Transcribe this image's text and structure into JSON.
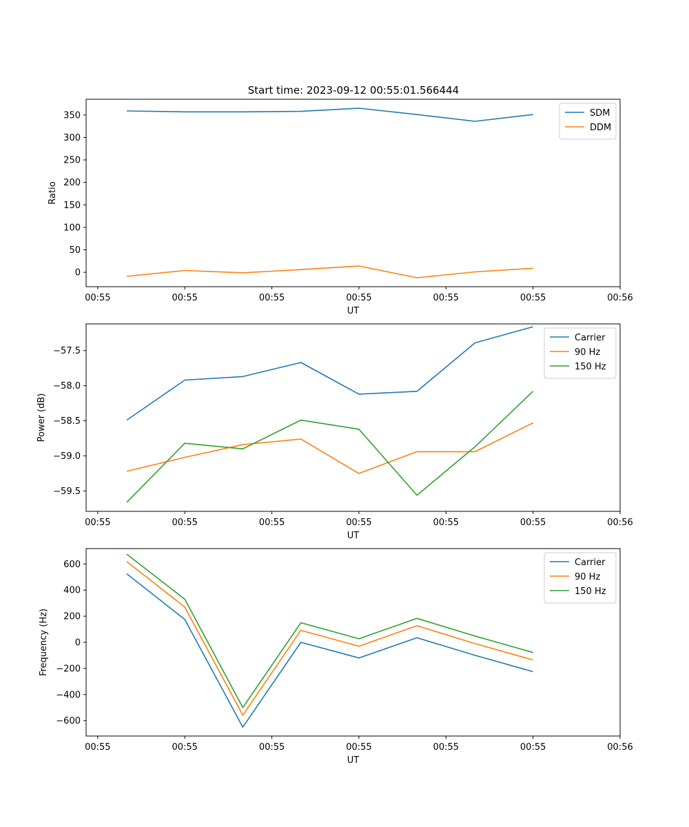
{
  "figure": {
    "title": "Start time: 2023-09-12 00:55:01.566444"
  },
  "colors": {
    "blue": "#1f77b4",
    "orange": "#ff7f0e",
    "green": "#2ca02c"
  },
  "chart_data": [
    {
      "type": "line",
      "title": "Start time: 2023-09-12 00:55:01.566444",
      "xlabel": "UT",
      "ylabel": "Ratio",
      "x": [
        1,
        2,
        3,
        4,
        5,
        6,
        7,
        8
      ],
      "xlim": [
        0.3,
        9.5
      ],
      "ylim": [
        -32,
        385
      ],
      "yticks": [
        0,
        50,
        100,
        150,
        200,
        250,
        300,
        350
      ],
      "xticks": [
        0.5,
        2,
        3.5,
        5,
        6.5,
        8,
        9.5
      ],
      "xticklabels": [
        "00:55",
        "00:55",
        "00:55",
        "00:55",
        "00:55",
        "00:55",
        "00:56"
      ],
      "legend_position": "top-right",
      "series": [
        {
          "name": "SDM",
          "color": "#1f77b4",
          "values": [
            359,
            357,
            357,
            358,
            365,
            351,
            336,
            351
          ]
        },
        {
          "name": "DDM",
          "color": "#ff7f0e",
          "values": [
            -9,
            4,
            -1,
            6,
            14,
            -12,
            1,
            9
          ]
        }
      ]
    },
    {
      "type": "line",
      "title": "",
      "xlabel": "UT",
      "ylabel": "Power (dB)",
      "x": [
        1,
        2,
        3,
        4,
        5,
        6,
        7,
        8
      ],
      "xlim": [
        0.3,
        9.5
      ],
      "ylim": [
        -59.79,
        -57.12
      ],
      "yticks": [
        -59.5,
        -59.0,
        -58.5,
        -58.0,
        -57.5
      ],
      "yticklabels": [
        "−59.5",
        "−59.0",
        "−58.5",
        "−58.0",
        "−57.5"
      ],
      "xticks": [
        0.5,
        2,
        3.5,
        5,
        6.5,
        8,
        9.5
      ],
      "xticklabels": [
        "00:55",
        "00:55",
        "00:55",
        "00:55",
        "00:55",
        "00:55",
        "00:56"
      ],
      "legend_position": "top-right",
      "series": [
        {
          "name": "Carrier",
          "color": "#1f77b4",
          "values": [
            -58.49,
            -57.92,
            -57.87,
            -57.67,
            -58.12,
            -58.08,
            -57.39,
            -57.16
          ]
        },
        {
          "name": "90 Hz",
          "color": "#ff7f0e",
          "values": [
            -59.22,
            -59.02,
            -58.84,
            -58.76,
            -59.25,
            -58.94,
            -58.94,
            -58.53
          ]
        },
        {
          "name": "150 Hz",
          "color": "#2ca02c",
          "values": [
            -59.66,
            -58.82,
            -58.9,
            -58.49,
            -58.62,
            -59.56,
            -58.87,
            -58.08
          ]
        }
      ]
    },
    {
      "type": "line",
      "title": "",
      "xlabel": "UT",
      "ylabel": "Frequency (Hz)",
      "x": [
        1,
        2,
        3,
        4,
        5,
        6,
        7,
        8
      ],
      "xlim": [
        0.3,
        9.5
      ],
      "ylim": [
        -718,
        718
      ],
      "yticks": [
        -600,
        -400,
        -200,
        0,
        200,
        400,
        600
      ],
      "yticklabels": [
        "−600",
        "−400",
        "−200",
        "0",
        "200",
        "400",
        "600"
      ],
      "xticks": [
        0.5,
        2,
        3.5,
        5,
        6.5,
        8,
        9.5
      ],
      "xticklabels": [
        "00:55",
        "00:55",
        "00:55",
        "00:55",
        "00:55",
        "00:55",
        "00:56"
      ],
      "legend_position": "top-right",
      "series": [
        {
          "name": "Carrier",
          "color": "#1f77b4",
          "values": [
            525,
            175,
            -650,
            0,
            -120,
            35,
            -100,
            -225
          ]
        },
        {
          "name": "90 Hz",
          "color": "#ff7f0e",
          "values": [
            618,
            270,
            -558,
            92,
            -30,
            127,
            -10,
            -135
          ]
        },
        {
          "name": "150 Hz",
          "color": "#2ca02c",
          "values": [
            675,
            330,
            -500,
            150,
            27,
            183,
            48,
            -78
          ]
        }
      ]
    }
  ]
}
